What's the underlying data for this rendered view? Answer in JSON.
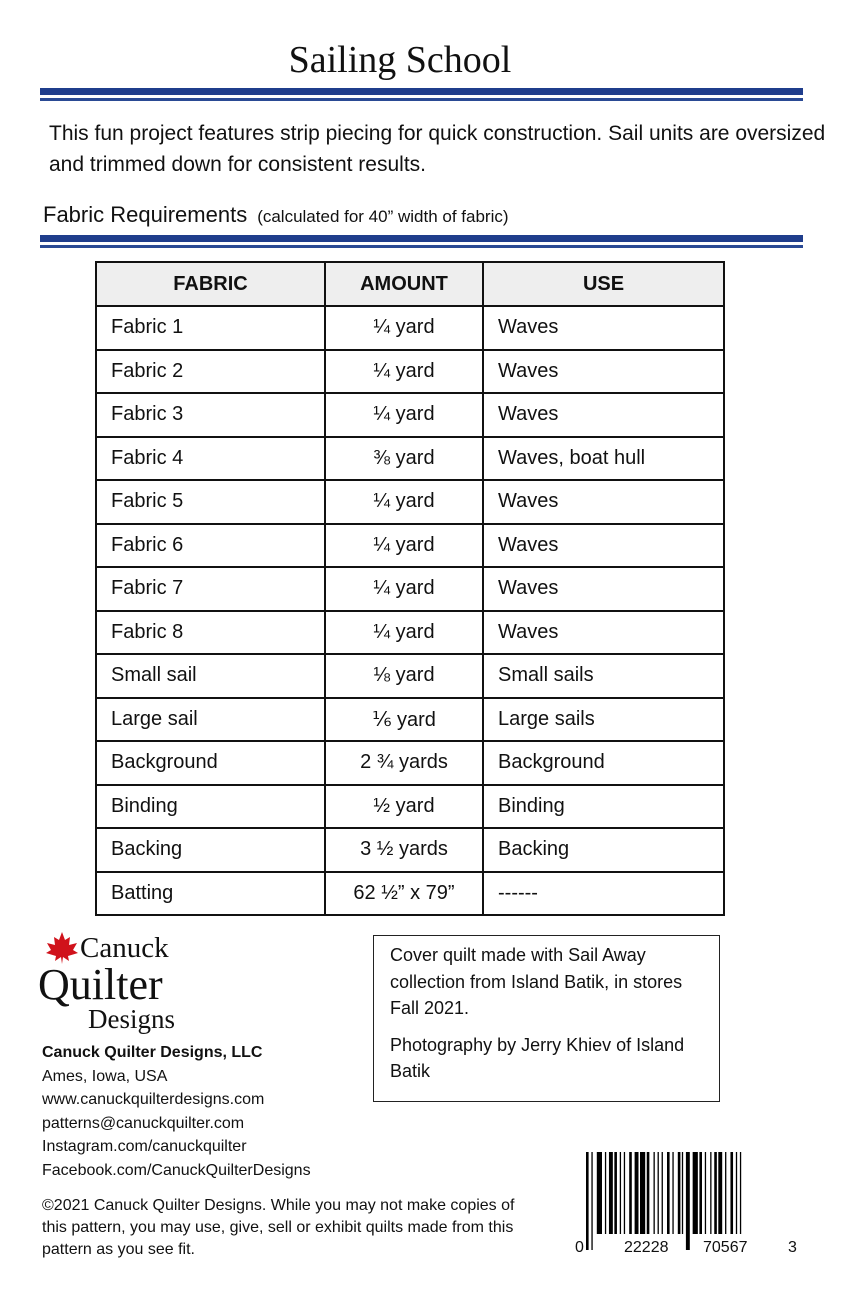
{
  "title": "Sailing School",
  "intro": "This fun project features strip piecing for quick construction. Sail units are oversized and trimmed down for consistent results.",
  "requirements": {
    "heading": "Fabric Requirements",
    "note": "(calculated for 40” width of fabric)"
  },
  "colors": {
    "rule": "#1f3d8c",
    "logo_leaf": "#d0121b"
  },
  "table": {
    "headers": [
      "FABRIC",
      "AMOUNT",
      "USE"
    ],
    "rows": [
      [
        "Fabric 1",
        "¼ yard",
        "Waves"
      ],
      [
        "Fabric 2",
        "¼ yard",
        "Waves"
      ],
      [
        "Fabric 3",
        "¼ yard",
        "Waves"
      ],
      [
        "Fabric 4",
        "⅜ yard",
        "Waves, boat hull"
      ],
      [
        "Fabric 5",
        "¼ yard",
        "Waves"
      ],
      [
        "Fabric 6",
        "¼ yard",
        "Waves"
      ],
      [
        "Fabric 7",
        "¼ yard",
        "Waves"
      ],
      [
        "Fabric 8",
        "¼ yard",
        "Waves"
      ],
      [
        "Small sail",
        "⅛ yard",
        "Small sails"
      ],
      [
        "Large sail",
        "⅙ yard",
        "Large sails"
      ],
      [
        "Background",
        "2 ¾ yards",
        "Background"
      ],
      [
        "Binding",
        "½ yard",
        "Binding"
      ],
      [
        "Backing",
        "3 ½ yards",
        "Backing"
      ],
      [
        "Batting",
        "62 ½” x 79”",
        "------"
      ]
    ]
  },
  "logo": {
    "line1": "Canuck",
    "line2": "Quilter",
    "line3": "Designs",
    "icon": "maple-leaf-icon"
  },
  "company": {
    "name": "Canuck Quilter Designs, LLC",
    "location": "Ames, Iowa, USA",
    "website": "www.canuckquilterdesigns.com",
    "email": "patterns@canuckquilter.com",
    "instagram": "Instagram.com/canuckquilter",
    "facebook": "Facebook.com/CanuckQuilterDesigns"
  },
  "note": {
    "p1": "Cover quilt made with Sail Away collection from Island Batik, in stores Fall 2021.",
    "p2": "Photography by Jerry Khiev of Island Batik"
  },
  "copyright": "©2021 Canuck Quilter Designs.  While  you may not make copies of this pattern, you may use, give, sell or exhibit  quilts made from this pattern as  you see fit.",
  "barcode": {
    "d1": "0",
    "d2": "22228",
    "d3": "70567",
    "d4": "3"
  }
}
